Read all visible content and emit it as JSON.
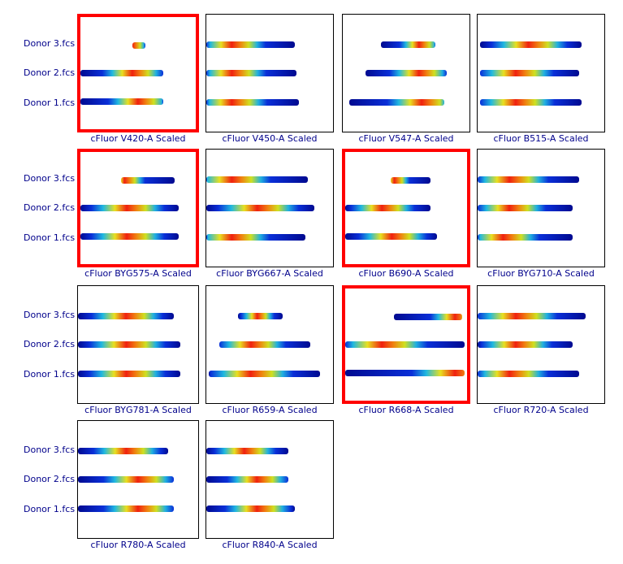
{
  "donors": [
    "Donor 3.fcs",
    "Donor 2.fcs",
    "Donor 1.fcs"
  ],
  "chart_data": {
    "type": "heatmap",
    "description_rows": [
      "Donor 3.fcs",
      "Donor 2.fcs",
      "Donor 1.fcs"
    ],
    "panels": [
      {
        "title": "cFluor V420-A Scaled",
        "highlighted": true,
        "peaks": [
          0.45,
          0.45,
          0.5
        ]
      },
      {
        "title": "cFluor V450-A Scaled",
        "highlighted": false,
        "peaks": [
          0.2,
          0.2,
          0.2
        ]
      },
      {
        "title": "cFluor V547-A Scaled",
        "highlighted": false,
        "peaks": [
          0.6,
          0.6,
          0.62
        ]
      },
      {
        "title": "cFluor B515-A Scaled",
        "highlighted": false,
        "peaks": [
          0.4,
          0.3,
          0.3
        ]
      },
      {
        "title": "cFluor BYG575-A Scaled",
        "highlighted": true,
        "peaks": [
          0.38,
          0.4,
          0.4
        ]
      },
      {
        "title": "cFluor BYG667-A Scaled",
        "highlighted": false,
        "peaks": [
          0.2,
          0.4,
          0.2
        ]
      },
      {
        "title": "cFluor B690-A Scaled",
        "highlighted": true,
        "peaks": [
          0.4,
          0.3,
          0.38
        ]
      },
      {
        "title": "cFluor BYG710-A Scaled",
        "highlighted": false,
        "peaks": [
          0.25,
          0.25,
          0.2
        ]
      },
      {
        "title": "cFluor BYG781-A Scaled",
        "highlighted": false,
        "peaks": [
          0.4,
          0.4,
          0.4
        ]
      },
      {
        "title": "cFluor R659-A Scaled",
        "highlighted": false,
        "peaks": [
          0.4,
          0.35,
          0.35
        ]
      },
      {
        "title": "cFluor R668-A Scaled",
        "highlighted": true,
        "peaks": [
          0.9,
          0.3,
          0.9
        ]
      },
      {
        "title": "cFluor R720-A Scaled",
        "highlighted": false,
        "peaks": [
          0.3,
          0.3,
          0.25
        ]
      },
      {
        "title": "cFluor R780-A Scaled",
        "highlighted": false,
        "peaks": [
          0.4,
          0.5,
          0.5
        ]
      },
      {
        "title": "cFluor R840-A Scaled",
        "highlighted": false,
        "peaks": [
          0.3,
          0.4,
          0.4
        ]
      }
    ]
  }
}
